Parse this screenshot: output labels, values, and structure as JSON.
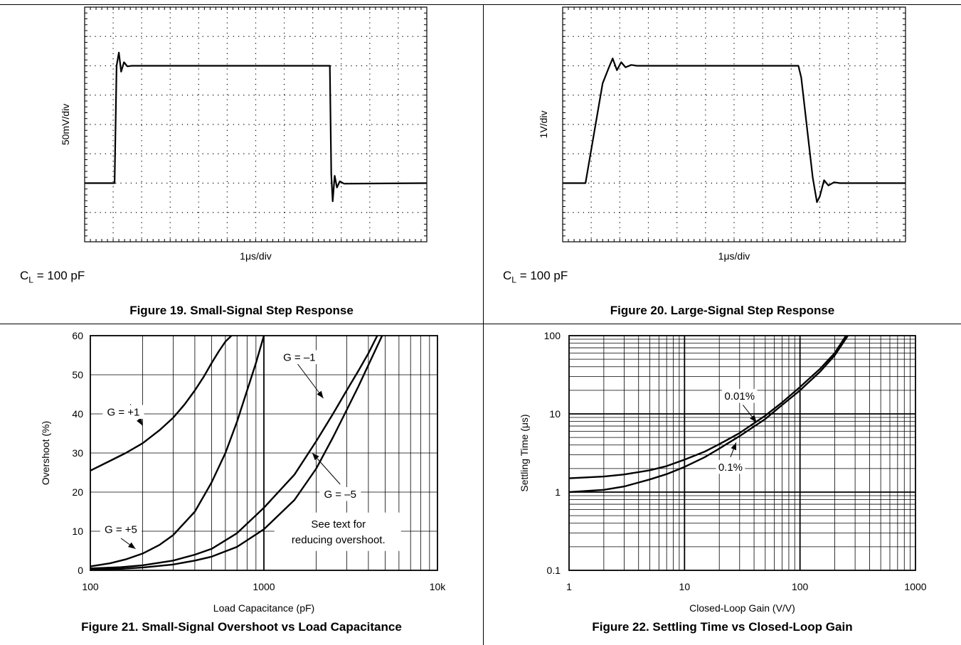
{
  "chart_data": [
    {
      "id": "fig19",
      "type": "line",
      "caption": "Figure 19. Small-Signal Step Response",
      "ylabel": "50mV/div",
      "xlabel": "1μs/div",
      "note_main": "C",
      "note_sub": "L",
      "note_rest": " = 100 pF",
      "divisions": {
        "x": 12,
        "y": 8
      },
      "grid": "dotted",
      "x_unit": "div",
      "y_unit": "div",
      "trace": [
        [
          0,
          2.0
        ],
        [
          1.05,
          2.0
        ],
        [
          1.12,
          6.0
        ],
        [
          1.2,
          6.45
        ],
        [
          1.28,
          5.8
        ],
        [
          1.38,
          6.12
        ],
        [
          1.5,
          5.98
        ],
        [
          1.65,
          6.0
        ],
        [
          8.6,
          6.0
        ],
        [
          8.65,
          2.3
        ],
        [
          8.7,
          1.38
        ],
        [
          8.77,
          2.25
        ],
        [
          8.85,
          1.85
        ],
        [
          8.95,
          2.06
        ],
        [
          9.1,
          1.98
        ],
        [
          12,
          2.0
        ]
      ]
    },
    {
      "id": "fig20",
      "type": "line",
      "caption": "Figure 20. Large-Signal Step Response",
      "ylabel": "1V/div",
      "xlabel": "1μs/div",
      "note_main": "C",
      "note_sub": "L",
      "note_rest": " = 100 pF",
      "divisions": {
        "x": 12,
        "y": 8
      },
      "grid": "dotted",
      "x_unit": "div",
      "y_unit": "div",
      "trace": [
        [
          0,
          2.0
        ],
        [
          0.8,
          2.0
        ],
        [
          1.4,
          5.4
        ],
        [
          1.6,
          5.9
        ],
        [
          1.75,
          6.25
        ],
        [
          1.9,
          5.85
        ],
        [
          2.05,
          6.12
        ],
        [
          2.2,
          5.95
        ],
        [
          2.4,
          6.03
        ],
        [
          2.6,
          6.0
        ],
        [
          8.25,
          6.0
        ],
        [
          8.35,
          5.6
        ],
        [
          8.75,
          2.2
        ],
        [
          8.9,
          1.35
        ],
        [
          9.0,
          1.55
        ],
        [
          9.15,
          2.1
        ],
        [
          9.3,
          1.92
        ],
        [
          9.5,
          2.03
        ],
        [
          9.7,
          2.0
        ],
        [
          12,
          2.0
        ]
      ]
    },
    {
      "id": "fig21",
      "type": "line",
      "caption": "Figure 21. Small-Signal Overshoot vs Load Capacitance",
      "xlabel": "Load Capacitance (pF)",
      "ylabel": "Overshoot (%)",
      "xscale": "log",
      "xlim": [
        100,
        10000
      ],
      "ylim": [
        0,
        60
      ],
      "xticks": [
        {
          "v": 100,
          "label": "100"
        },
        {
          "v": 1000,
          "label": "1000"
        },
        {
          "v": 10000,
          "label": "10k"
        }
      ],
      "yticks": [
        0,
        10,
        20,
        30,
        40,
        50,
        60
      ],
      "grid": "on",
      "series": [
        {
          "id": "g_p1",
          "x": [
            100,
            130,
            160,
            200,
            250,
            300,
            350,
            400,
            450,
            500,
            550,
            600,
            650
          ],
          "y": [
            25.5,
            28,
            30,
            32.5,
            35.8,
            39,
            42.5,
            46,
            49.5,
            53,
            56,
            58.5,
            60
          ]
        },
        {
          "id": "g_p5",
          "x": [
            100,
            130,
            160,
            200,
            250,
            300,
            400,
            500,
            600,
            700,
            800,
            900,
            1000
          ],
          "y": [
            1,
            1.8,
            2.8,
            4.3,
            6.5,
            9,
            15,
            22.5,
            30,
            38,
            46,
            53,
            60
          ]
        },
        {
          "id": "g_m1",
          "x": [
            100,
            150,
            200,
            300,
            400,
            500,
            700,
            1000,
            1500,
            2000,
            2500,
            3000,
            3500,
            4000,
            4500
          ],
          "y": [
            0.5,
            0.8,
            1.3,
            2.5,
            4,
            5.5,
            9.5,
            16,
            24.5,
            33,
            40,
            46,
            51,
            55.5,
            60
          ]
        },
        {
          "id": "g_m5",
          "x": [
            100,
            150,
            200,
            300,
            400,
            500,
            700,
            1000,
            1500,
            2000,
            2500,
            3000,
            3500,
            4000,
            4800
          ],
          "y": [
            0.2,
            0.4,
            0.7,
            1.5,
            2.5,
            3.5,
            6,
            10.5,
            18,
            26,
            34,
            41,
            47,
            52.5,
            60
          ]
        }
      ],
      "annotations": [
        {
          "text": "G = +1",
          "x": 155,
          "y": 40.5,
          "ax": 200,
          "ay": 37,
          "tx": 170,
          "ty": 42.5
        },
        {
          "text": "G = +5",
          "x": 150,
          "y": 10.5,
          "ax": 182,
          "ay": 5.5,
          "tx": 150,
          "ty": 8.2
        },
        {
          "text": "G = –1",
          "x": 1600,
          "y": 54.5,
          "ax": 2200,
          "ay": 44,
          "tx": 1550,
          "ty": 53
        },
        {
          "text": "G = –5",
          "x": 2750,
          "y": 19.5,
          "ax": 1900,
          "ay": 30,
          "tx": 2750,
          "ty": 22
        }
      ],
      "note_lines": [
        "See text for",
        "reducing overshoot."
      ]
    },
    {
      "id": "fig22",
      "type": "line",
      "caption": "Figure 22. Settling Time vs Closed-Loop Gain",
      "xlabel": "Closed-Loop Gain (V/V)",
      "ylabel": "Settling Time (μs)",
      "xscale": "log",
      "yscale": "log",
      "xlim": [
        1,
        1000
      ],
      "ylim": [
        0.1,
        100
      ],
      "xticks": [
        {
          "v": 1,
          "label": "1"
        },
        {
          "v": 10,
          "label": "10"
        },
        {
          "v": 100,
          "label": "100"
        },
        {
          "v": 1000,
          "label": "1000"
        }
      ],
      "yticks": [
        {
          "v": 0.1,
          "label": "0.1"
        },
        {
          "v": 1,
          "label": "1"
        },
        {
          "v": 10,
          "label": "10"
        },
        {
          "v": 100,
          "label": "100"
        }
      ],
      "grid": "on",
      "series": [
        {
          "id": "s001",
          "x": [
            1,
            2,
            3,
            5,
            7,
            10,
            15,
            20,
            30,
            50,
            70,
            100,
            150,
            200,
            250
          ],
          "y": [
            1.5,
            1.58,
            1.68,
            1.9,
            2.15,
            2.6,
            3.3,
            4.1,
            5.7,
            9.5,
            14,
            22,
            38,
            60,
            100
          ]
        },
        {
          "id": "s01",
          "x": [
            1,
            2,
            3,
            5,
            7,
            10,
            15,
            20,
            30,
            50,
            70,
            100,
            150,
            200,
            260
          ],
          "y": [
            1.0,
            1.07,
            1.18,
            1.45,
            1.7,
            2.1,
            2.8,
            3.6,
            5.2,
            8.6,
            13,
            20,
            35,
            56,
            100
          ]
        }
      ],
      "annotations": [
        {
          "text": "0.01%",
          "x": 30,
          "y": 17,
          "ax": 42,
          "ay": 7.8,
          "tx": 32,
          "ty": 13
        },
        {
          "text": "0.1%",
          "x": 25,
          "y": 2.1,
          "ax": 28,
          "ay": 4.3,
          "tx": 25,
          "ty": 2.8
        }
      ]
    }
  ]
}
